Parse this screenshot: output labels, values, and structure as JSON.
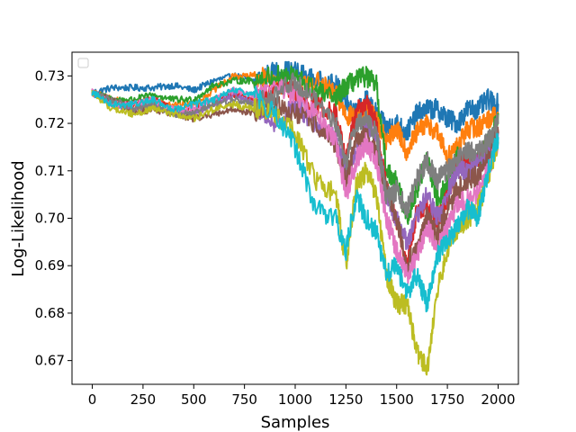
{
  "chart_data": {
    "type": "line",
    "title": "",
    "xlabel": "Samples",
    "ylabel": "Log-Likelihood",
    "xlim": [
      -100,
      2100
    ],
    "ylim": [
      0.665,
      0.735
    ],
    "x_ticks": [
      0,
      250,
      500,
      750,
      1000,
      1250,
      1500,
      1750,
      2000
    ],
    "x_tick_labels": [
      "0",
      "250",
      "500",
      "750",
      "1000",
      "1250",
      "1500",
      "1750",
      "2000"
    ],
    "y_ticks": [
      0.67,
      0.68,
      0.69,
      0.7,
      0.71,
      0.72,
      0.73
    ],
    "y_tick_labels": [
      "0.67",
      "0.68",
      "0.69",
      "0.70",
      "0.71",
      "0.72",
      "0.73"
    ],
    "grid": false,
    "legend": {
      "placement": "upper-left",
      "entries": []
    },
    "x": [
      0,
      100,
      200,
      300,
      400,
      500,
      600,
      700,
      800,
      900,
      1000,
      1100,
      1200,
      1250,
      1300,
      1350,
      1400,
      1450,
      1500,
      1550,
      1600,
      1650,
      1700,
      1750,
      1800,
      1850,
      1900,
      1950,
      2000
    ],
    "series": [
      {
        "color": "#1f77b4",
        "values": [
          0.7265,
          0.7275,
          0.7275,
          0.7275,
          0.728,
          0.727,
          0.729,
          0.73,
          0.729,
          0.731,
          0.731,
          0.729,
          0.728,
          0.725,
          0.722,
          0.725,
          0.722,
          0.719,
          0.72,
          0.718,
          0.722,
          0.723,
          0.723,
          0.721,
          0.72,
          0.723,
          0.723,
          0.725,
          0.724
        ]
      },
      {
        "color": "#ff7f0e",
        "values": [
          0.7265,
          0.725,
          0.724,
          0.725,
          0.724,
          0.724,
          0.727,
          0.73,
          0.73,
          0.729,
          0.727,
          0.729,
          0.726,
          0.722,
          0.721,
          0.723,
          0.721,
          0.716,
          0.719,
          0.714,
          0.718,
          0.72,
          0.718,
          0.713,
          0.715,
          0.719,
          0.719,
          0.721,
          0.722
        ]
      },
      {
        "color": "#2ca02c",
        "values": [
          0.7265,
          0.725,
          0.725,
          0.726,
          0.725,
          0.725,
          0.728,
          0.729,
          0.729,
          0.73,
          0.73,
          0.727,
          0.725,
          0.728,
          0.729,
          0.73,
          0.728,
          0.71,
          0.708,
          0.7,
          0.706,
          0.713,
          0.704,
          0.707,
          0.713,
          0.712,
          0.712,
          0.716,
          0.722
        ]
      },
      {
        "color": "#d62728",
        "values": [
          0.7265,
          0.724,
          0.724,
          0.725,
          0.723,
          0.723,
          0.725,
          0.726,
          0.725,
          0.727,
          0.727,
          0.724,
          0.722,
          0.712,
          0.723,
          0.724,
          0.72,
          0.706,
          0.699,
          0.69,
          0.702,
          0.702,
          0.7,
          0.704,
          0.712,
          0.712,
          0.713,
          0.715,
          0.718
        ]
      },
      {
        "color": "#9467bd",
        "values": [
          0.7265,
          0.724,
          0.723,
          0.724,
          0.722,
          0.722,
          0.724,
          0.726,
          0.724,
          0.72,
          0.724,
          0.72,
          0.717,
          0.71,
          0.713,
          0.72,
          0.718,
          0.705,
          0.7,
          0.695,
          0.7,
          0.705,
          0.7,
          0.705,
          0.71,
          0.71,
          0.712,
          0.714,
          0.718
        ]
      },
      {
        "color": "#8c564b",
        "values": [
          0.7265,
          0.725,
          0.722,
          0.723,
          0.722,
          0.721,
          0.722,
          0.723,
          0.722,
          0.724,
          0.722,
          0.72,
          0.715,
          0.708,
          0.716,
          0.718,
          0.714,
          0.706,
          0.7,
          0.69,
          0.694,
          0.7,
          0.696,
          0.702,
          0.706,
          0.708,
          0.709,
          0.713,
          0.718
        ]
      },
      {
        "color": "#e377c2",
        "values": [
          0.7265,
          0.724,
          0.724,
          0.725,
          0.723,
          0.723,
          0.725,
          0.727,
          0.726,
          0.728,
          0.726,
          0.722,
          0.716,
          0.705,
          0.712,
          0.716,
          0.712,
          0.7,
          0.693,
          0.688,
          0.692,
          0.698,
          0.694,
          0.698,
          0.703,
          0.704,
          0.705,
          0.71,
          0.716
        ]
      },
      {
        "color": "#7f7f7f",
        "values": [
          0.7265,
          0.725,
          0.723,
          0.724,
          0.722,
          0.722,
          0.724,
          0.725,
          0.724,
          0.726,
          0.729,
          0.725,
          0.72,
          0.712,
          0.72,
          0.721,
          0.718,
          0.704,
          0.706,
          0.702,
          0.708,
          0.712,
          0.708,
          0.71,
          0.713,
          0.714,
          0.714,
          0.716,
          0.72
        ]
      },
      {
        "color": "#bcbd22",
        "values": [
          0.7265,
          0.723,
          0.722,
          0.723,
          0.722,
          0.721,
          0.723,
          0.724,
          0.723,
          0.722,
          0.718,
          0.708,
          0.705,
          0.69,
          0.707,
          0.71,
          0.705,
          0.688,
          0.682,
          0.682,
          0.672,
          0.668,
          0.685,
          0.693,
          0.698,
          0.7,
          0.702,
          0.708,
          0.716
        ]
      },
      {
        "color": "#17becf",
        "values": [
          0.7265,
          0.724,
          0.724,
          0.725,
          0.723,
          0.724,
          0.725,
          0.727,
          0.726,
          0.722,
          0.715,
          0.702,
          0.7,
          0.693,
          0.705,
          0.7,
          0.697,
          0.688,
          0.69,
          0.684,
          0.688,
          0.682,
          0.692,
          0.695,
          0.698,
          0.702,
          0.7,
          0.71,
          0.717
        ]
      }
    ]
  }
}
